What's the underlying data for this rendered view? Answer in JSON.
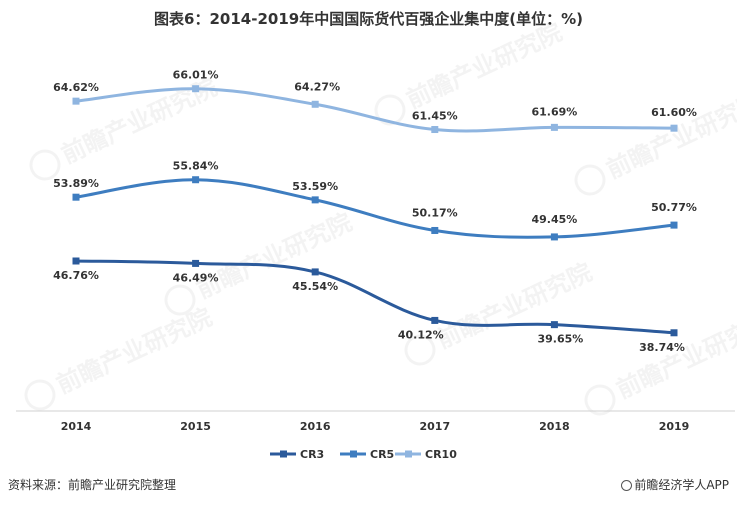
{
  "title": "图表6：2014-2019年中国国际货代百强企业集中度(单位：%)",
  "source": "资料来源：前瞻产业研究院整理",
  "brand": "前瞻经济学人APP",
  "watermark": "前瞻产业研究院",
  "colors": {
    "CR3": "#2b5a9b",
    "CR5": "#3e7dc0",
    "CR10": "#8fb5e0"
  },
  "chart_data": {
    "type": "line",
    "categories": [
      "2014",
      "2015",
      "2016",
      "2017",
      "2018",
      "2019"
    ],
    "series": [
      {
        "name": "CR3",
        "values": [
          46.76,
          46.49,
          45.54,
          40.12,
          39.65,
          38.74
        ],
        "labels": [
          "46.76%",
          "46.49%",
          "45.54%",
          "40.12%",
          "39.65%",
          "38.74%"
        ]
      },
      {
        "name": "CR5",
        "values": [
          53.89,
          55.84,
          53.59,
          50.17,
          49.45,
          50.77
        ],
        "labels": [
          "53.89%",
          "55.84%",
          "53.59%",
          "50.17%",
          "49.45%",
          "50.77%"
        ]
      },
      {
        "name": "CR10",
        "values": [
          64.62,
          66.01,
          64.27,
          61.45,
          61.69,
          61.6
        ],
        "labels": [
          "64.62%",
          "66.01%",
          "64.27%",
          "61.45%",
          "61.69%",
          "61.60%"
        ]
      }
    ],
    "ylim": [
      30,
      70
    ],
    "smooth": true,
    "grid": false,
    "legend": "bottom-center"
  }
}
